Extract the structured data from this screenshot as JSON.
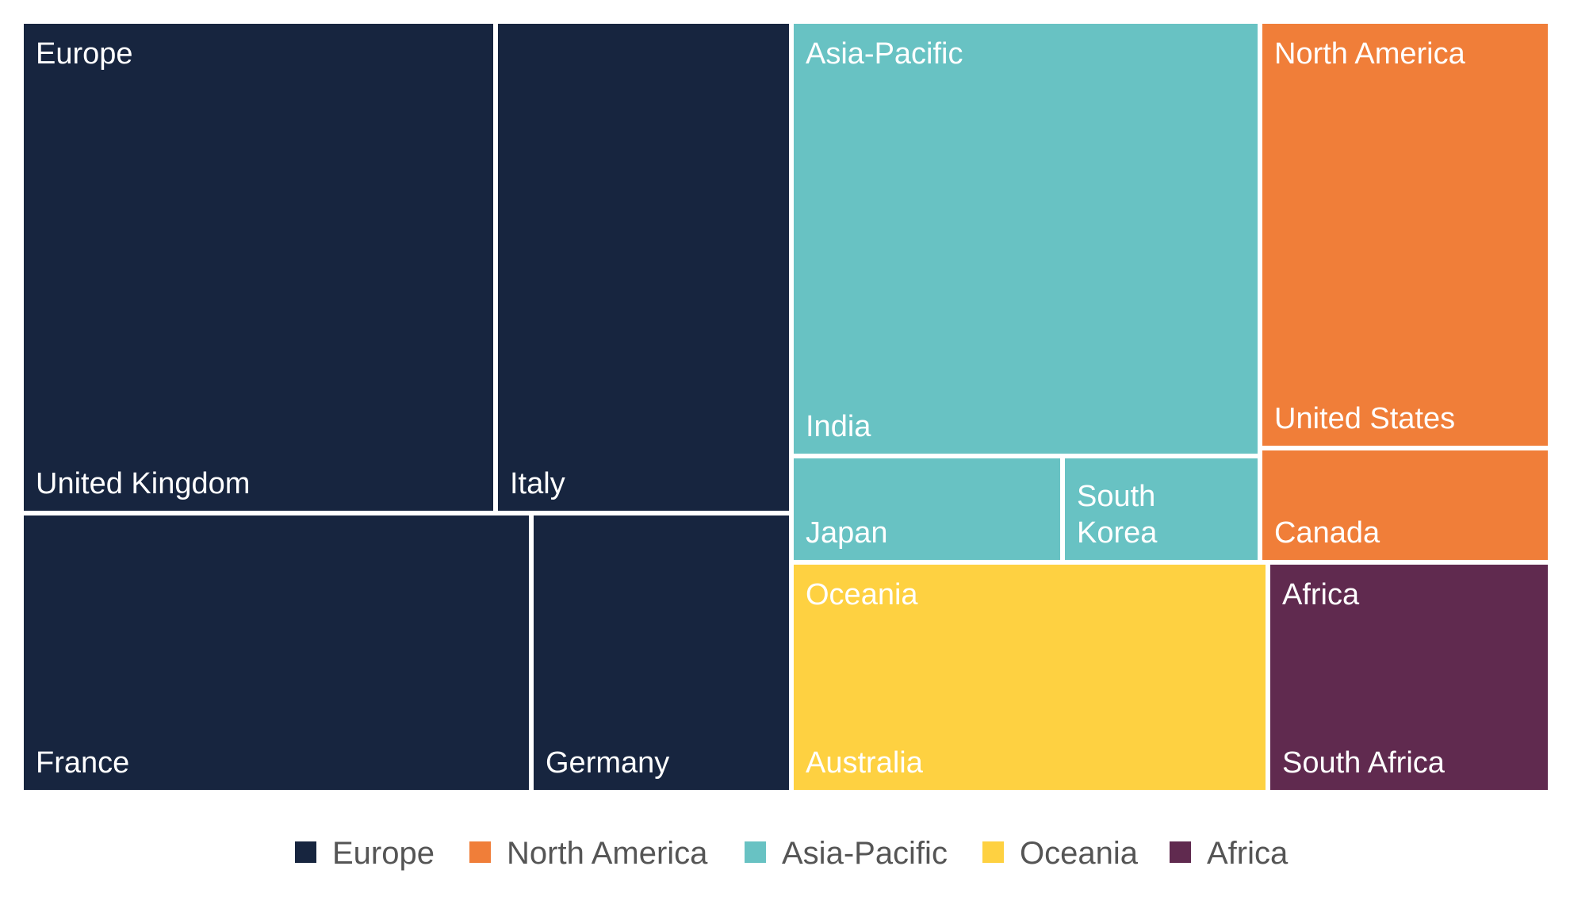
{
  "chart_data": {
    "type": "treemap",
    "title": "",
    "groups": [
      {
        "name": "Europe",
        "color": "#17253f",
        "children": [
          {
            "name": "United Kingdom"
          },
          {
            "name": "Italy"
          },
          {
            "name": "France"
          },
          {
            "name": "Germany"
          }
        ]
      },
      {
        "name": "Asia-Pacific",
        "color": "#68c2c3",
        "children": [
          {
            "name": "India"
          },
          {
            "name": "Japan"
          },
          {
            "name": "South Korea",
            "lines": [
              "South",
              "Korea"
            ]
          }
        ]
      },
      {
        "name": "North America",
        "color": "#f07e39",
        "children": [
          {
            "name": "United States"
          },
          {
            "name": "Canada"
          }
        ]
      },
      {
        "name": "Oceania",
        "color": "#fed141",
        "children": [
          {
            "name": "Australia"
          }
        ]
      },
      {
        "name": "Africa",
        "color": "#602a4f",
        "children": [
          {
            "name": "South Africa"
          }
        ]
      }
    ],
    "legend": {
      "placement": "bottom",
      "items": [
        {
          "name": "Europe",
          "color": "#17253f"
        },
        {
          "name": "North America",
          "color": "#f07e39"
        },
        {
          "name": "Asia-Pacific",
          "color": "#68c2c3"
        },
        {
          "name": "Oceania",
          "color": "#fed141"
        },
        {
          "name": "Africa",
          "color": "#602a4f"
        }
      ]
    }
  }
}
